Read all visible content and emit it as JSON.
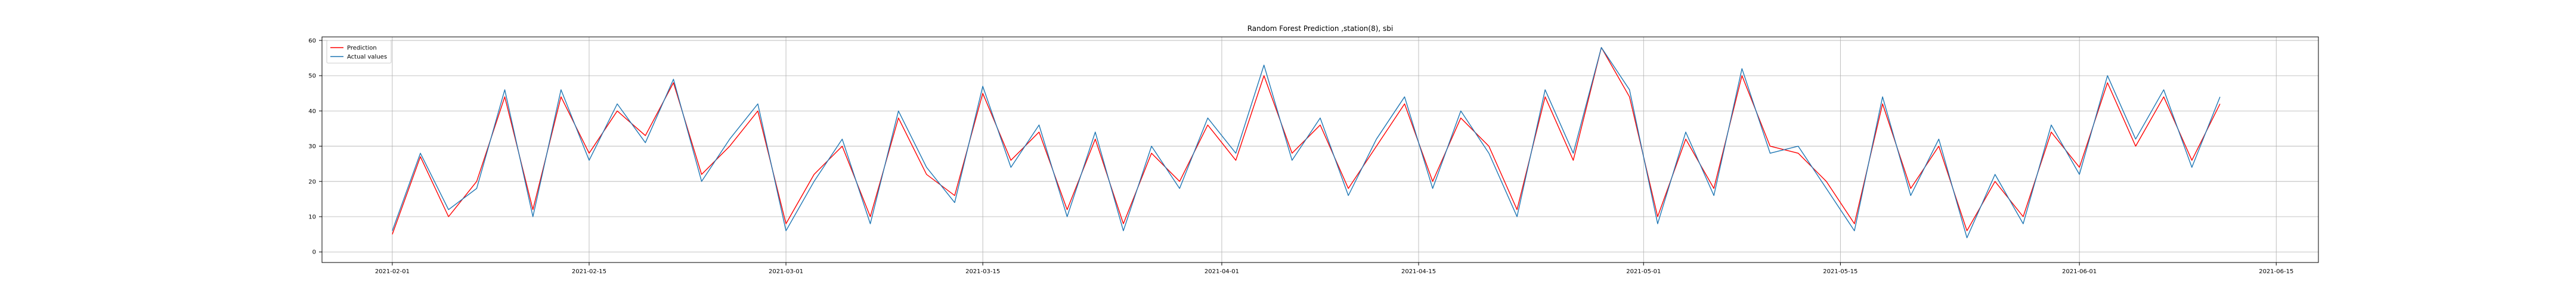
{
  "chart_data": {
    "type": "line",
    "title": "Random Forest Prediction ,station(8), sbi",
    "xlabel": "",
    "ylabel": "",
    "xlim": [
      "2021-01-27",
      "2021-06-18"
    ],
    "ylim": [
      -3,
      61
    ],
    "grid": true,
    "legend_position": "upper-left",
    "x_ticks": [
      "2021-02-01",
      "2021-02-15",
      "2021-03-01",
      "2021-03-15",
      "2021-04-01",
      "2021-04-15",
      "2021-05-01",
      "2021-05-15",
      "2021-06-01",
      "2021-06-15"
    ],
    "y_ticks": [
      0,
      10,
      20,
      30,
      40,
      50,
      60
    ],
    "x": [
      "2021-02-01",
      "2021-02-03",
      "2021-02-05",
      "2021-02-07",
      "2021-02-09",
      "2021-02-11",
      "2021-02-13",
      "2021-02-15",
      "2021-02-17",
      "2021-02-19",
      "2021-02-21",
      "2021-02-23",
      "2021-02-25",
      "2021-02-27",
      "2021-03-01",
      "2021-03-03",
      "2021-03-05",
      "2021-03-07",
      "2021-03-09",
      "2021-03-11",
      "2021-03-13",
      "2021-03-15",
      "2021-03-17",
      "2021-03-19",
      "2021-03-21",
      "2021-03-23",
      "2021-03-25",
      "2021-03-27",
      "2021-03-29",
      "2021-03-31",
      "2021-04-02",
      "2021-04-04",
      "2021-04-06",
      "2021-04-08",
      "2021-04-10",
      "2021-04-12",
      "2021-04-14",
      "2021-04-16",
      "2021-04-18",
      "2021-04-20",
      "2021-04-22",
      "2021-04-24",
      "2021-04-26",
      "2021-04-28",
      "2021-04-30",
      "2021-05-02",
      "2021-05-04",
      "2021-05-06",
      "2021-05-08",
      "2021-05-10",
      "2021-05-12",
      "2021-05-14",
      "2021-05-16",
      "2021-05-18",
      "2021-05-20",
      "2021-05-22",
      "2021-05-24",
      "2021-05-26",
      "2021-05-28",
      "2021-05-30",
      "2021-06-01",
      "2021-06-03",
      "2021-06-05",
      "2021-06-07",
      "2021-06-09",
      "2021-06-11"
    ],
    "series": [
      {
        "name": "Prediction",
        "color": "#ff0000",
        "values": [
          5,
          27,
          10,
          20,
          44,
          12,
          44,
          28,
          40,
          33,
          48,
          22,
          30,
          40,
          8,
          22,
          30,
          10,
          38,
          22,
          16,
          45,
          26,
          34,
          12,
          32,
          8,
          28,
          20,
          36,
          26,
          50,
          28,
          36,
          18,
          30,
          42,
          20,
          38,
          30,
          12,
          44,
          26,
          58,
          44,
          10,
          32,
          18,
          50,
          30,
          28,
          20,
          8,
          42,
          18,
          30,
          6,
          20,
          10,
          34,
          24,
          48,
          30,
          44,
          26,
          42
        ]
      },
      {
        "name": "Actual values",
        "color": "#1f77b4",
        "values": [
          6,
          28,
          12,
          18,
          46,
          10,
          46,
          26,
          42,
          31,
          49,
          20,
          32,
          42,
          6,
          20,
          32,
          8,
          40,
          24,
          14,
          47,
          24,
          36,
          10,
          34,
          6,
          30,
          18,
          38,
          28,
          53,
          26,
          38,
          16,
          32,
          44,
          18,
          40,
          28,
          10,
          46,
          28,
          58,
          46,
          8,
          34,
          16,
          52,
          28,
          30,
          18,
          6,
          44,
          16,
          32,
          4,
          22,
          8,
          36,
          22,
          50,
          32,
          46,
          24,
          44
        ]
      }
    ]
  }
}
